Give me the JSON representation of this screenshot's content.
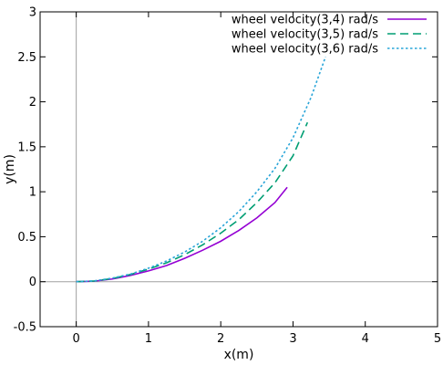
{
  "chart_data": {
    "type": "line",
    "title": "",
    "xlabel": "x(m)",
    "ylabel": "y(m)",
    "xlim": [
      -0.5,
      5
    ],
    "ylim": [
      -0.5,
      3
    ],
    "xticks": [
      0,
      1,
      2,
      3,
      4,
      5
    ],
    "xtick_labels": [
      "0",
      "1",
      "2",
      "3",
      "4",
      "5"
    ],
    "yticks": [
      -0.5,
      0,
      0.5,
      1,
      1.5,
      2,
      2.5,
      3
    ],
    "ytick_labels": [
      "-0.5",
      "0",
      "0.5",
      "1",
      "1.5",
      "2",
      "2.5",
      "3"
    ],
    "grid": false,
    "zero_lines": true,
    "legend_position": "top-right",
    "series": [
      {
        "name": "wheel velocity(3,4) rad/s",
        "color": "#9400d3",
        "dash": "solid",
        "x": [
          0,
          0.25,
          0.5,
          0.75,
          1.0,
          1.25,
          1.5,
          1.75,
          2.0,
          2.25,
          2.5,
          2.75,
          2.92
        ],
        "y": [
          0,
          0.006,
          0.03,
          0.07,
          0.12,
          0.18,
          0.26,
          0.35,
          0.45,
          0.57,
          0.71,
          0.88,
          1.05
        ]
      },
      {
        "name": "wheel velocity(3,5) rad/s",
        "color": "#009e73",
        "dash": "dashed",
        "x": [
          0,
          0.25,
          0.5,
          0.75,
          1.0,
          1.25,
          1.5,
          1.75,
          2.0,
          2.25,
          2.5,
          2.75,
          3.0,
          3.2
        ],
        "y": [
          0,
          0.008,
          0.035,
          0.08,
          0.14,
          0.21,
          0.3,
          0.41,
          0.54,
          0.69,
          0.88,
          1.1,
          1.4,
          1.77
        ]
      },
      {
        "name": "wheel velocity(3,6) rad/s",
        "color": "#29a5d8",
        "dash": "dotted",
        "x": [
          0,
          0.25,
          0.5,
          0.75,
          1.0,
          1.25,
          1.5,
          1.75,
          2.0,
          2.25,
          2.5,
          2.75,
          3.0,
          3.25,
          3.45
        ],
        "y": [
          0,
          0.009,
          0.04,
          0.085,
          0.15,
          0.23,
          0.33,
          0.45,
          0.6,
          0.78,
          1.0,
          1.26,
          1.6,
          2.05,
          2.5
        ]
      }
    ]
  }
}
